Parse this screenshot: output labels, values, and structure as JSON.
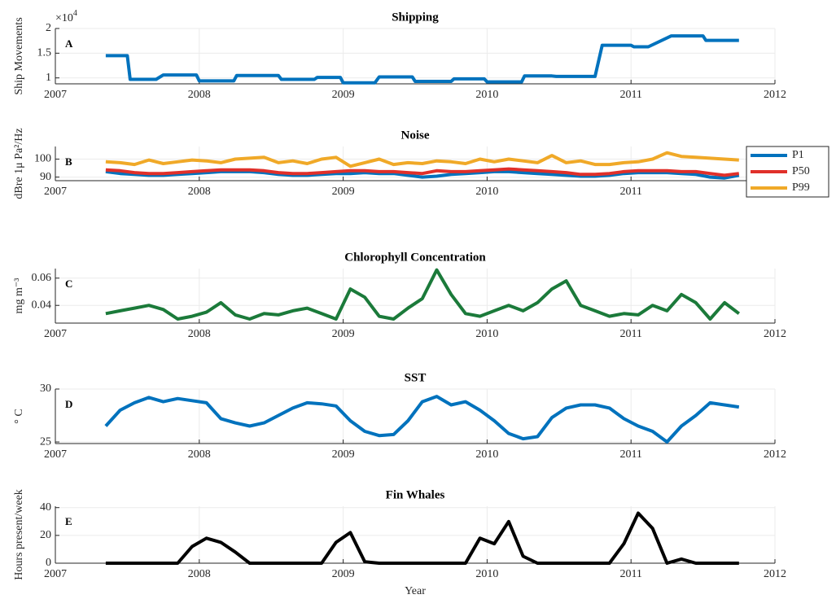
{
  "chart_data": [
    {
      "type": "line",
      "title": "Shipping",
      "panel_label": "A",
      "y_label": "Ship Movements",
      "y_multiplier": {
        "base": "×10",
        "exponent": "4"
      },
      "x": [
        2007.35,
        2007.5,
        2007.52,
        2007.7,
        2007.75,
        2007.98,
        2008.0,
        2008.24,
        2008.26,
        2008.55,
        2008.57,
        2008.8,
        2008.82,
        2008.98,
        2009.0,
        2009.22,
        2009.25,
        2009.48,
        2009.5,
        2009.75,
        2009.77,
        2009.98,
        2010.0,
        2010.24,
        2010.26,
        2010.45,
        2010.48,
        2010.75,
        2010.8,
        2011.0,
        2011.02,
        2011.12,
        2011.28,
        2011.5,
        2011.52,
        2011.75
      ],
      "series": [
        {
          "color": "#0072bd",
          "values": [
            1.45,
            1.45,
            0.97,
            0.97,
            1.06,
            1.06,
            0.94,
            0.94,
            1.05,
            1.05,
            0.97,
            0.97,
            1.01,
            1.01,
            0.9,
            0.9,
            1.02,
            1.02,
            0.93,
            0.93,
            0.98,
            0.98,
            0.92,
            0.92,
            1.04,
            1.04,
            1.03,
            1.03,
            1.66,
            1.66,
            1.63,
            1.63,
            1.85,
            1.85,
            1.76,
            1.76
          ]
        }
      ],
      "xlim": [
        2007,
        2012
      ],
      "xticks": [
        2007,
        2008,
        2009,
        2010,
        2011,
        2012
      ],
      "ylim": [
        0.88,
        2
      ],
      "yticks": [
        1,
        1.5,
        2
      ],
      "grid": true
    },
    {
      "type": "line",
      "title": "Noise",
      "panel_label": "B",
      "y_label": "dBre 1μ Pa²/Hz",
      "legend": "east-outside",
      "x": [
        2007.35,
        2007.45,
        2007.55,
        2007.65,
        2007.75,
        2007.85,
        2007.95,
        2008.05,
        2008.15,
        2008.25,
        2008.35,
        2008.45,
        2008.55,
        2008.65,
        2008.75,
        2008.85,
        2008.95,
        2009.05,
        2009.15,
        2009.25,
        2009.35,
        2009.45,
        2009.55,
        2009.65,
        2009.75,
        2009.85,
        2009.95,
        2010.05,
        2010.15,
        2010.25,
        2010.35,
        2010.45,
        2010.55,
        2010.65,
        2010.75,
        2010.85,
        2010.95,
        2011.05,
        2011.15,
        2011.25,
        2011.35,
        2011.45,
        2011.55,
        2011.65,
        2011.75
      ],
      "series": [
        {
          "name": "P1",
          "color": "#0072bd",
          "values": [
            93,
            92,
            91.5,
            91,
            91,
            91.5,
            92,
            92.5,
            93,
            93,
            93,
            92.5,
            91.5,
            91,
            91,
            91.5,
            92,
            92,
            92.5,
            92,
            92,
            91,
            90,
            90.5,
            91.5,
            92,
            92.5,
            93,
            93,
            92.5,
            92,
            91.5,
            91,
            90.5,
            90.5,
            91,
            92,
            92.5,
            92.5,
            92.5,
            92,
            91.5,
            90,
            89.5,
            91
          ]
        },
        {
          "name": "P50",
          "color": "#e0302a",
          "values": [
            94,
            93.5,
            92.5,
            92,
            92,
            92.5,
            93,
            93.5,
            94,
            94,
            94,
            93.5,
            92.5,
            92,
            92,
            92.5,
            93,
            93.5,
            93.5,
            93,
            93,
            92.5,
            92,
            93.5,
            93,
            93,
            93.5,
            94,
            94.5,
            94,
            93.5,
            93,
            92.5,
            91.5,
            91.5,
            92,
            93,
            93.5,
            93.5,
            93.5,
            93,
            93,
            92,
            91,
            92
          ]
        },
        {
          "name": "P99",
          "color": "#f0a928",
          "values": [
            98.5,
            98,
            97,
            99.5,
            97.5,
            98.5,
            99.5,
            99,
            98,
            100,
            100.5,
            101,
            98,
            99,
            97.5,
            100,
            101,
            96,
            98,
            100,
            97,
            98,
            97.5,
            99,
            98.5,
            97.5,
            100,
            98.5,
            100,
            99,
            98,
            102,
            98,
            99,
            97,
            97,
            98,
            98.5,
            100,
            103.5,
            101.5,
            101,
            100.5,
            100,
            99.5
          ]
        }
      ],
      "xlim": [
        2007,
        2012
      ],
      "xticks": [
        2007,
        2008,
        2009,
        2010,
        2011,
        2012
      ],
      "ylim": [
        88,
        107
      ],
      "yticks": [
        90,
        100
      ],
      "grid": true
    },
    {
      "type": "line",
      "title": "Chlorophyll Concentration",
      "panel_label": "C",
      "y_label": "mg m⁻³",
      "x": [
        2007.35,
        2007.45,
        2007.55,
        2007.65,
        2007.75,
        2007.85,
        2007.95,
        2008.05,
        2008.15,
        2008.25,
        2008.35,
        2008.45,
        2008.55,
        2008.65,
        2008.75,
        2008.85,
        2008.95,
        2009.05,
        2009.15,
        2009.25,
        2009.35,
        2009.45,
        2009.55,
        2009.65,
        2009.75,
        2009.85,
        2009.95,
        2010.05,
        2010.15,
        2010.25,
        2010.35,
        2010.45,
        2010.55,
        2010.65,
        2010.75,
        2010.85,
        2010.95,
        2011.05,
        2011.15,
        2011.25,
        2011.35,
        2011.45,
        2011.55,
        2011.65,
        2011.75
      ],
      "series": [
        {
          "color": "#1b7a3a",
          "values": [
            0.034,
            0.036,
            0.038,
            0.04,
            0.037,
            0.03,
            0.032,
            0.035,
            0.042,
            0.033,
            0.03,
            0.034,
            0.033,
            0.036,
            0.038,
            0.034,
            0.03,
            0.052,
            0.046,
            0.032,
            0.03,
            0.038,
            0.045,
            0.066,
            0.048,
            0.034,
            0.032,
            0.036,
            0.04,
            0.036,
            0.042,
            0.052,
            0.058,
            0.04,
            0.036,
            0.032,
            0.034,
            0.033,
            0.04,
            0.036,
            0.048,
            0.042,
            0.03,
            0.042,
            0.034
          ]
        }
      ],
      "xlim": [
        2007,
        2012
      ],
      "xticks": [
        2007,
        2008,
        2009,
        2010,
        2011,
        2012
      ],
      "ylim": [
        0.027,
        0.067
      ],
      "yticks": [
        0.04,
        0.06
      ],
      "grid": true
    },
    {
      "type": "line",
      "title": "SST",
      "panel_label": "D",
      "y_label": "° C",
      "x": [
        2007.35,
        2007.45,
        2007.55,
        2007.65,
        2007.75,
        2007.85,
        2007.95,
        2008.05,
        2008.15,
        2008.25,
        2008.35,
        2008.45,
        2008.55,
        2008.65,
        2008.75,
        2008.85,
        2008.95,
        2009.05,
        2009.15,
        2009.25,
        2009.35,
        2009.45,
        2009.55,
        2009.65,
        2009.75,
        2009.85,
        2009.95,
        2010.05,
        2010.15,
        2010.25,
        2010.35,
        2010.45,
        2010.55,
        2010.65,
        2010.75,
        2010.85,
        2010.95,
        2011.05,
        2011.15,
        2011.25,
        2011.35,
        2011.45,
        2011.55,
        2011.65,
        2011.75
      ],
      "series": [
        {
          "color": "#0072bd",
          "values": [
            26.5,
            28,
            28.7,
            29.2,
            28.8,
            29.1,
            28.9,
            28.7,
            27.2,
            26.8,
            26.5,
            26.8,
            27.5,
            28.2,
            28.7,
            28.6,
            28.4,
            27,
            26,
            25.6,
            25.7,
            27,
            28.8,
            29.3,
            28.5,
            28.8,
            28,
            27,
            25.8,
            25.3,
            25.5,
            27.3,
            28.2,
            28.5,
            28.5,
            28.2,
            27.2,
            26.5,
            26,
            25,
            26.5,
            27.5,
            28.7,
            28.5,
            28.3
          ]
        }
      ],
      "xlim": [
        2007,
        2012
      ],
      "xticks": [
        2007,
        2008,
        2009,
        2010,
        2011,
        2012
      ],
      "ylim": [
        24.85,
        30
      ],
      "yticks": [
        25,
        30
      ],
      "grid": true
    },
    {
      "type": "line",
      "title": "Fin Whales",
      "panel_label": "E",
      "y_label": "Hours present/week",
      "x_label": "Year",
      "x": [
        2007.35,
        2007.45,
        2007.55,
        2007.65,
        2007.75,
        2007.85,
        2007.95,
        2008.05,
        2008.15,
        2008.25,
        2008.35,
        2008.45,
        2008.55,
        2008.65,
        2008.75,
        2008.85,
        2008.95,
        2009.05,
        2009.15,
        2009.25,
        2009.35,
        2009.45,
        2009.55,
        2009.65,
        2009.75,
        2009.85,
        2009.95,
        2010.05,
        2010.15,
        2010.25,
        2010.35,
        2010.45,
        2010.55,
        2010.65,
        2010.75,
        2010.85,
        2010.95,
        2011.05,
        2011.15,
        2011.25,
        2011.35,
        2011.45,
        2011.55,
        2011.65,
        2011.75
      ],
      "series": [
        {
          "color": "#000000",
          "values": [
            0,
            0,
            0,
            0,
            0,
            0,
            12,
            18,
            15,
            8,
            0,
            0,
            0,
            0,
            0,
            0,
            15,
            22,
            1,
            0,
            0,
            0,
            0,
            0,
            0,
            0,
            18,
            14,
            30,
            5,
            0,
            0,
            0,
            0,
            0,
            0,
            14,
            36,
            25,
            0,
            3,
            0,
            0,
            0,
            0
          ]
        }
      ],
      "xlim": [
        2007,
        2012
      ],
      "xticks": [
        2007,
        2008,
        2009,
        2010,
        2011,
        2012
      ],
      "ylim": [
        0,
        41
      ],
      "yticks": [
        0,
        20,
        40
      ],
      "grid": true
    }
  ]
}
